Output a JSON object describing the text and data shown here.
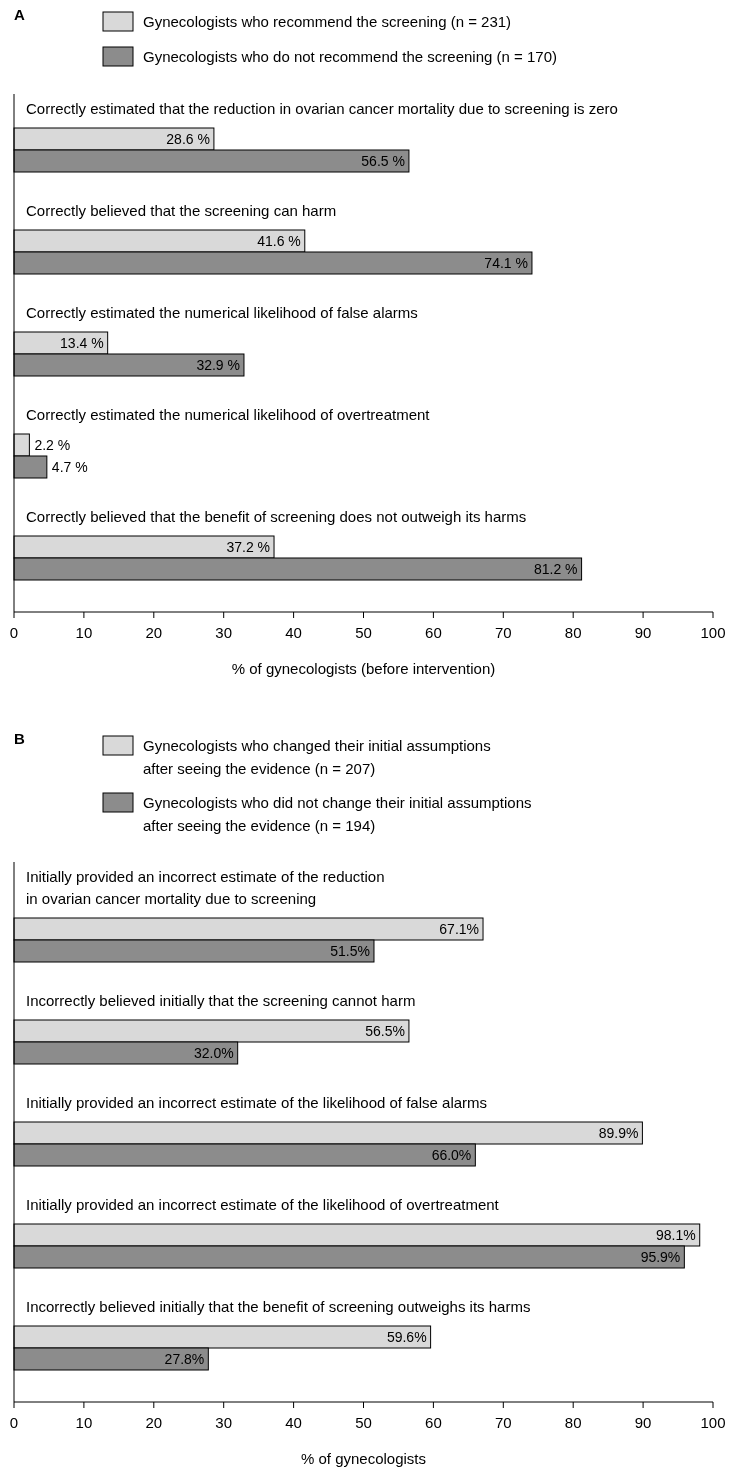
{
  "chart_data": [
    {
      "type": "bar",
      "orientation": "horizontal",
      "title": "A",
      "xlabel": "% of gynecologists (before intervention)",
      "xlim": [
        0,
        100
      ],
      "xticks": [
        0,
        10,
        20,
        30,
        40,
        50,
        60,
        70,
        80,
        90,
        100
      ],
      "legend": "top",
      "grid": false,
      "categories": [
        "Correctly estimated that the reduction in ovarian cancer mortality due to screening is zero",
        "Correctly believed that the screening can harm",
        "Correctly estimated the numerical likelihood of false alarms",
        "Correctly estimated the numerical likelihood of overtreatment",
        "Correctly believed that the benefit of screening does not outweigh its harms"
      ],
      "series": [
        {
          "name": "Gynecologists who recommend the screening (n = 231)",
          "color": "#d9d9d9",
          "values": [
            28.6,
            41.6,
            13.4,
            2.2,
            37.2
          ],
          "value_labels": [
            "28.6 %",
            "41.6 %",
            "13.4 %",
            "2.2 %",
            "37.2 %"
          ]
        },
        {
          "name": "Gynecologists who do not recommend the screening (n = 170)",
          "color": "#8c8c8c",
          "values": [
            56.5,
            74.1,
            32.9,
            4.7,
            81.2
          ],
          "value_labels": [
            "56.5 %",
            "74.1 %",
            "32.9 %",
            "4.7 %",
            "81.2 %"
          ]
        }
      ]
    },
    {
      "type": "bar",
      "orientation": "horizontal",
      "title": "B",
      "xlabel": "% of gynecologists",
      "xlim": [
        0,
        100
      ],
      "xticks": [
        0,
        10,
        20,
        30,
        40,
        50,
        60,
        70,
        80,
        90,
        100
      ],
      "legend": "top",
      "grid": false,
      "categories": [
        "Initially provided an incorrect estimate of the reduction\nin ovarian cancer mortality due to screening",
        "Incorrectly believed initially that the screening cannot harm",
        "Initially provided an incorrect estimate of the likelihood of false alarms",
        "Initially provided an incorrect estimate of the likelihood of overtreatment",
        "Incorrectly believed initially that the benefit of screening outweighs its harms"
      ],
      "series": [
        {
          "name": "Gynecologists who changed their initial assumptions\nafter seeing the evidence (n = 207)",
          "color": "#d9d9d9",
          "values": [
            67.1,
            56.5,
            89.9,
            98.1,
            59.6
          ],
          "value_labels": [
            "67.1%",
            "56.5%",
            "89.9%",
            "98.1%",
            "59.6%"
          ]
        },
        {
          "name": "Gynecologists who did not change their initial assumptions\nafter seeing the evidence (n = 194)",
          "color": "#8c8c8c",
          "values": [
            51.5,
            32.0,
            66.0,
            95.9,
            27.8
          ],
          "value_labels": [
            "51.5%",
            "32.0%",
            "66.0%",
            "95.9%",
            "27.8%"
          ]
        }
      ]
    }
  ]
}
